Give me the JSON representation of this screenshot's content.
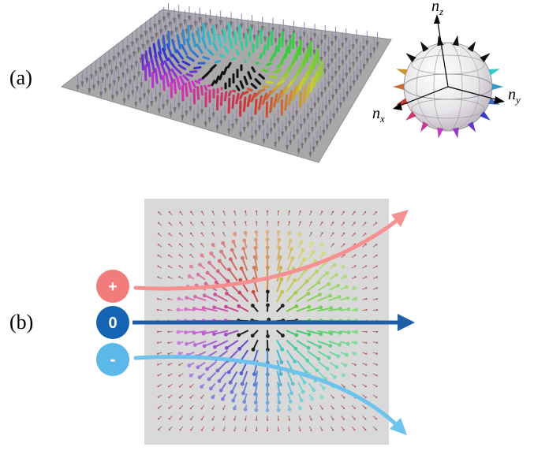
{
  "panels": {
    "a": {
      "label": "(a)"
    },
    "b": {
      "label": "(b)"
    }
  },
  "sphere": {
    "axes": [
      {
        "base": "n",
        "sub": "z"
      },
      {
        "base": "n",
        "sub": "y"
      },
      {
        "base": "n",
        "sub": "x"
      }
    ]
  },
  "charges": [
    {
      "symbol": "+",
      "color": "#f27b7b",
      "arrow_color": "#f79191"
    },
    {
      "symbol": "0",
      "color": "#1563b3",
      "arrow_color": "#1d5fa8"
    },
    {
      "symbol": "-",
      "color": "#5cb8e8",
      "arrow_color": "#6ec3ee"
    }
  ],
  "colors": {
    "plane": "#a9a9a9",
    "panel_b_background": "#d9d9d9",
    "skyrmion_core": "#111111"
  }
}
